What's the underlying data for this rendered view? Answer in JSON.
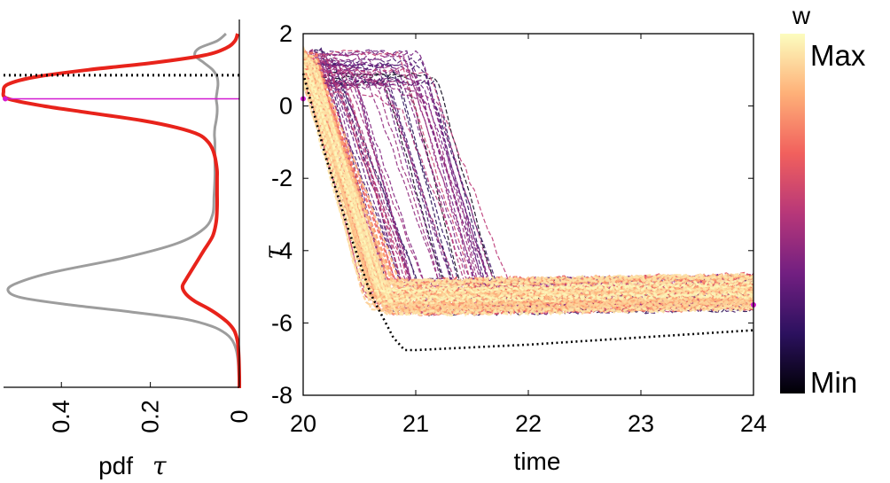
{
  "colors": {
    "red_pdf": "#e8231b",
    "gray_pdf": "#9d9d9d",
    "magenta": "#d21ad2",
    "reference": "#000000",
    "colormap": [
      "#000004",
      "#2c115f",
      "#721f81",
      "#b73779",
      "#f1605d",
      "#feb078",
      "#fcfdbf"
    ]
  },
  "chart_data": [
    {
      "id": "pdf-panel",
      "type": "line",
      "orientation": "rotated",
      "xlabel": "pdf",
      "xlabel_symbol": "τ",
      "x_ticks": [
        "0.4",
        "0.2",
        "0"
      ],
      "x_tick_values": [
        0.4,
        0.2,
        0
      ],
      "x_range": [
        0.53,
        0
      ],
      "y_range": [
        -8,
        2
      ],
      "series": [
        {
          "name": "pdf red",
          "color": "#e8231b",
          "tau": [
            2,
            1.8,
            1.6,
            1.4,
            1.2,
            1.0,
            0.8,
            0.6,
            0.4,
            0.2,
            0.0,
            -0.2,
            -0.4,
            -0.6,
            -0.8,
            -1.0,
            -1.2,
            -1.4,
            -1.6,
            -1.8,
            -2.0,
            -2.4,
            -2.8,
            -3.2,
            -3.6,
            -4.0,
            -4.4,
            -4.8,
            -5.0,
            -5.2,
            -5.4,
            -5.6,
            -5.8,
            -6.0,
            -6.2,
            -6.4,
            -6.6,
            -7.0,
            -7.5,
            -8.0
          ],
          "pdf": [
            0.004,
            0.01,
            0.03,
            0.08,
            0.19,
            0.34,
            0.46,
            0.52,
            0.53,
            0.52,
            0.44,
            0.33,
            0.22,
            0.14,
            0.09,
            0.07,
            0.06,
            0.055,
            0.052,
            0.05,
            0.05,
            0.05,
            0.05,
            0.052,
            0.06,
            0.08,
            0.1,
            0.12,
            0.128,
            0.12,
            0.1,
            0.07,
            0.045,
            0.025,
            0.012,
            0.006,
            0.003,
            0.001,
            0.0,
            0.0
          ]
        },
        {
          "name": "pdf gray",
          "color": "#9d9d9d",
          "tau": [
            2,
            1.8,
            1.6,
            1.4,
            1.2,
            1.0,
            0.8,
            0.6,
            0.4,
            0.2,
            0.0,
            -0.2,
            -0.4,
            -0.6,
            -0.8,
            -1.0,
            -1.5,
            -2.0,
            -2.5,
            -3.0,
            -3.4,
            -3.8,
            -4.2,
            -4.6,
            -4.9,
            -5.1,
            -5.3,
            -5.5,
            -5.7,
            -5.9,
            -6.1,
            -6.3,
            -6.5,
            -6.8,
            -7.2,
            -8.0
          ],
          "pdf": [
            0.03,
            0.05,
            0.09,
            0.1,
            0.08,
            0.06,
            0.05,
            0.048,
            0.05,
            0.052,
            0.05,
            0.05,
            0.052,
            0.055,
            0.056,
            0.055,
            0.055,
            0.055,
            0.057,
            0.06,
            0.08,
            0.14,
            0.26,
            0.42,
            0.5,
            0.52,
            0.49,
            0.38,
            0.24,
            0.12,
            0.06,
            0.03,
            0.015,
            0.006,
            0.002,
            0.0
          ]
        }
      ],
      "hlines": [
        {
          "name": "reference level",
          "y": 0.85,
          "style": "dotted",
          "color": "#000000"
        },
        {
          "name": "magenta level",
          "y": 0.2,
          "style": "solid",
          "color": "#d21ad2"
        }
      ]
    },
    {
      "id": "trajectory-panel",
      "type": "line",
      "xlabel": "time",
      "ylabel": "τ",
      "xlim": [
        20,
        24
      ],
      "ylim": [
        -8,
        2
      ],
      "x_ticks": [
        "20",
        "21",
        "22",
        "23",
        "24"
      ],
      "x_tick_values": [
        20,
        21,
        22,
        23,
        24
      ],
      "y_ticks": [
        "2",
        "0",
        "-2",
        "-4",
        "-6",
        "-8"
      ],
      "y_tick_values": [
        2,
        0,
        -2,
        -4,
        -6,
        -8
      ],
      "ensemble": {
        "description": "dashed trajectories colored by weight w",
        "count": 140,
        "start_tau_range": [
          0.5,
          1.6
        ],
        "plateau_tau_range": [
          -5.8,
          -4.5
        ],
        "drop_time_range": [
          20.0,
          21.9
        ]
      },
      "reference_series": {
        "name": "dotted reference",
        "x": [
          20,
          20.2,
          20.4,
          20.6,
          20.8,
          20.9,
          21.0,
          22,
          23,
          24
        ],
        "y": [
          0.9,
          -1.4,
          -3.4,
          -5.2,
          -6.4,
          -6.75,
          -6.75,
          -6.6,
          -6.4,
          -6.2
        ]
      },
      "markers": [
        {
          "name": "start marker",
          "x": 20.0,
          "y": 0.2,
          "color": "#d21ad2"
        },
        {
          "name": "end marker",
          "x": 24.0,
          "y": -5.5,
          "color": "#d21ad2"
        }
      ]
    },
    {
      "id": "colorbar",
      "type": "heatmap",
      "title": "w",
      "max_label": "Max",
      "min_label": "Min"
    }
  ]
}
